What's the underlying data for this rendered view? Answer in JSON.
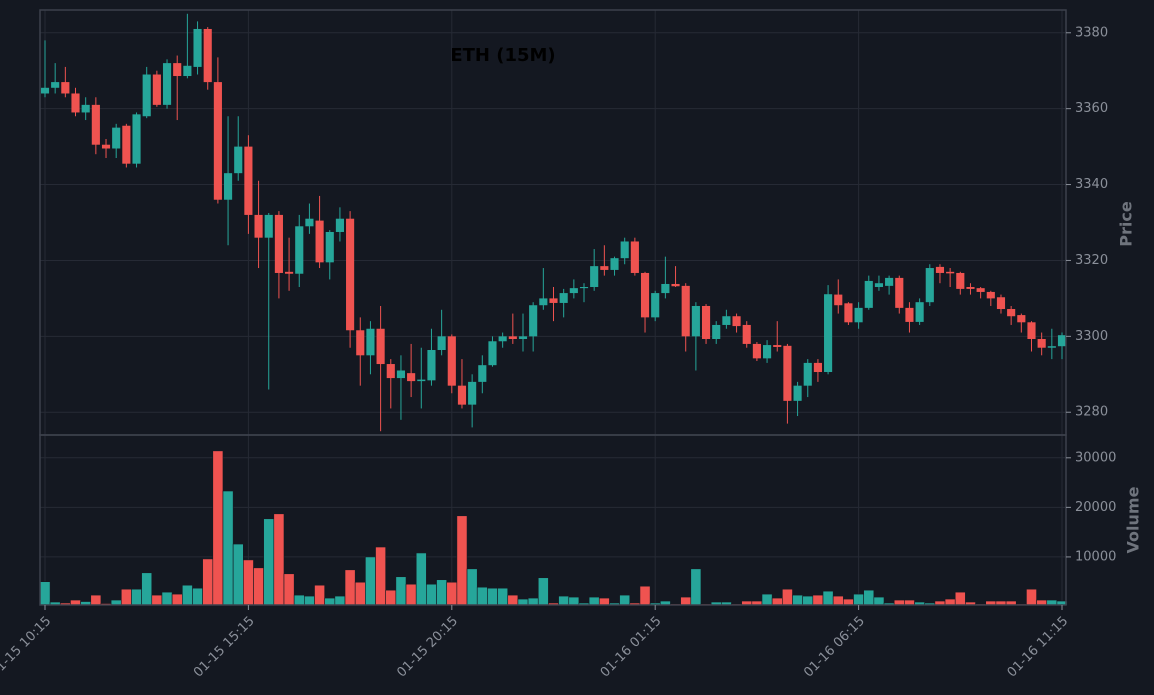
{
  "chart_data": {
    "type": "candlestick",
    "title": "ETH (15M)",
    "ylabel": "Price",
    "volume_label": "Volume",
    "up_color": "#26a69a",
    "down_color": "#ef5350",
    "grid": true,
    "categories": [
      "01-15 10:15",
      null,
      null,
      null,
      null,
      null,
      null,
      null,
      null,
      null,
      null,
      null,
      null,
      null,
      null,
      null,
      null,
      null,
      null,
      null,
      "01-15 15:15",
      null,
      null,
      null,
      null,
      null,
      null,
      null,
      null,
      null,
      null,
      null,
      null,
      null,
      null,
      null,
      null,
      null,
      null,
      null,
      "01-15 20:15",
      null,
      null,
      null,
      null,
      null,
      null,
      null,
      null,
      null,
      null,
      null,
      null,
      null,
      null,
      null,
      null,
      null,
      null,
      null,
      "01-16 01:15",
      null,
      null,
      null,
      null,
      null,
      null,
      null,
      null,
      null,
      null,
      null,
      null,
      null,
      null,
      null,
      null,
      null,
      null,
      null,
      "01-16 06:15",
      null,
      null,
      null,
      null,
      null,
      null,
      null,
      null,
      null,
      null,
      null,
      null,
      null,
      null,
      null,
      null,
      null,
      null,
      null,
      "01-16 11:15"
    ],
    "open": [
      3364,
      3365.5,
      3367,
      3364,
      3359,
      3361,
      3350.5,
      3349.5,
      3355.5,
      3345.5,
      3358,
      3369,
      3361,
      3372,
      3368.6,
      3371,
      3381,
      3367,
      3336,
      3343,
      3350,
      3332,
      3326,
      3332,
      3317,
      3316.5,
      3329,
      3330.5,
      3319.5,
      3327.5,
      3331,
      3301.6,
      3295,
      3302,
      3292.7,
      3289,
      3290.3,
      3288.2,
      3288.4,
      3296.4,
      3300,
      3287,
      3282,
      3288,
      3292.4,
      3298.7,
      3300,
      3299.3,
      3300,
      3308.2,
      3310,
      3308.8,
      3311.4,
      3312.7,
      3313,
      3318.5,
      3317.5,
      3320.6,
      3325,
      3316.7,
      3305,
      3311.4,
      3313.8,
      3313.3,
      3300,
      3308,
      3299.3,
      3303,
      3305.3,
      3303,
      3298,
      3294.2,
      3297.7,
      3297.5,
      3283,
      3287,
      3293,
      3290.6,
      3311,
      3308.7,
      3303.7,
      3307.5,
      3313,
      3313.3,
      3315.4,
      3307.5,
      3303.8,
      3309,
      3318.3,
      3317,
      3316.7,
      3313,
      3312.7,
      3311.7,
      3310.3,
      3307.2,
      3305.6,
      3303.7,
      3299.3,
      3297,
      3297.4
    ],
    "high": [
      3378,
      3372,
      3371,
      3365.5,
      3363,
      3363,
      3352,
      3356,
      3356,
      3359,
      3371,
      3370,
      3373,
      3374,
      3385,
      3383,
      3381.5,
      3373.5,
      3358,
      3358,
      3353,
      3341,
      3332.5,
      3333,
      3326,
      3332,
      3335,
      3337,
      3328,
      3334,
      3333,
      3305,
      3304,
      3308,
      3294,
      3295,
      3298,
      3297,
      3302,
      3307,
      3300.5,
      3294,
      3290,
      3295,
      3300,
      3301,
      3306,
      3306,
      3309,
      3318,
      3313,
      3312.5,
      3315,
      3314,
      3323,
      3324,
      3321,
      3326,
      3326,
      3317,
      3312,
      3321,
      3318.5,
      3314,
      3309,
      3308.5,
      3304,
      3307,
      3306,
      3304,
      3298.5,
      3299,
      3304,
      3298,
      3288,
      3294,
      3294,
      3313.5,
      3315,
      3309,
      3309,
      3316,
      3316,
      3316,
      3316,
      3309,
      3310,
      3319,
      3319,
      3318,
      3317,
      3314,
      3313,
      3312,
      3311,
      3308,
      3306,
      3304,
      3301,
      3302,
      3301
    ],
    "low": [
      3363,
      3364,
      3363,
      3358,
      3357,
      3348,
      3347,
      3347,
      3344.5,
      3344.5,
      3357.5,
      3360.5,
      3360,
      3357,
      3368,
      3369,
      3365,
      3335,
      3324,
      3341,
      3327,
      3318,
      3286,
      3310,
      3312,
      3313,
      3327,
      3318,
      3315,
      3325,
      3297,
      3287,
      3290,
      3275,
      3281,
      3278,
      3284,
      3281,
      3287,
      3295,
      3285,
      3281,
      3276,
      3285,
      3292,
      3297,
      3298,
      3296,
      3296,
      3307,
      3304,
      3305,
      3310,
      3309,
      3312,
      3316,
      3316,
      3319,
      3316,
      3301,
      3304,
      3310,
      3313,
      3296,
      3291,
      3298,
      3298,
      3302,
      3301,
      3297,
      3293.5,
      3293,
      3296,
      3277,
      3279,
      3284,
      3288,
      3290,
      3306,
      3303,
      3302,
      3307,
      3312,
      3311,
      3306,
      3301,
      3303,
      3308,
      3314,
      3313,
      3311,
      3311,
      3310,
      3308,
      3306,
      3303,
      3301,
      3296,
      3295,
      3294,
      3294
    ],
    "close": [
      3365.5,
      3367,
      3364,
      3359,
      3361,
      3350.5,
      3349.5,
      3355,
      3345.5,
      3358.5,
      3369,
      3361,
      3372,
      3368.6,
      3371.3,
      3381,
      3367,
      3336,
      3343,
      3350,
      3332,
      3326,
      3332,
      3316.7,
      3316.5,
      3329,
      3331,
      3319.5,
      3327.5,
      3331,
      3301.6,
      3295,
      3302,
      3292.7,
      3289,
      3291,
      3288.2,
      3288.6,
      3296.4,
      3300,
      3287,
      3282,
      3288,
      3292.4,
      3298.7,
      3300,
      3299.3,
      3300,
      3308.2,
      3310,
      3308.8,
      3311.4,
      3312.7,
      3313,
      3318.5,
      3317.5,
      3320.6,
      3325,
      3316.7,
      3305,
      3311.4,
      3313.8,
      3313.2,
      3300,
      3308,
      3299.3,
      3303,
      3305.3,
      3302.7,
      3298,
      3294.2,
      3297.7,
      3297.2,
      3283,
      3287,
      3293,
      3290.6,
      3311.1,
      3308.2,
      3303.7,
      3307.5,
      3314.6,
      3314,
      3315.4,
      3307.5,
      3303.8,
      3309,
      3318,
      3316.7,
      3316.6,
      3312.5,
      3312.5,
      3311.7,
      3310,
      3307.2,
      3305.3,
      3303.7,
      3299.3,
      3297,
      3297.4,
      3300.3
    ],
    "volume": [
      5000,
      900,
      700,
      1300,
      1000,
      2300,
      600,
      1300,
      3500,
      3500,
      6800,
      2300,
      2900,
      2500,
      4300,
      3700,
      9600,
      31400,
      23300,
      12600,
      9400,
      7800,
      17700,
      18700,
      6600,
      2300,
      2100,
      4300,
      1700,
      2100,
      7400,
      4900,
      10000,
      12000,
      3300,
      6000,
      4500,
      10800,
      4500,
      5400,
      4900,
      18300,
      7600,
      3900,
      3700,
      3700,
      2300,
      1500,
      1700,
      5800,
      700,
      2100,
      1900,
      700,
      1900,
      1700,
      700,
      2300,
      700,
      4100,
      700,
      1100,
      500,
      1900,
      7600,
      500,
      900,
      900,
      500,
      1100,
      1100,
      2500,
      1700,
      3500,
      2300,
      2100,
      2300,
      3100,
      2100,
      1500,
      2500,
      3300,
      1900,
      700,
      1300,
      1300,
      900,
      700,
      1100,
      1500,
      2900,
      900,
      500,
      1100,
      1100,
      1100,
      500,
      3500,
      1300,
      1300,
      1100
    ],
    "ylim": [
      3274,
      3386
    ],
    "yticks": [
      3280,
      3300,
      3320,
      3340,
      3360,
      3380
    ],
    "volume_ylim": [
      300,
      34600
    ],
    "volume_yticks": [
      10000,
      20000,
      30000
    ]
  }
}
